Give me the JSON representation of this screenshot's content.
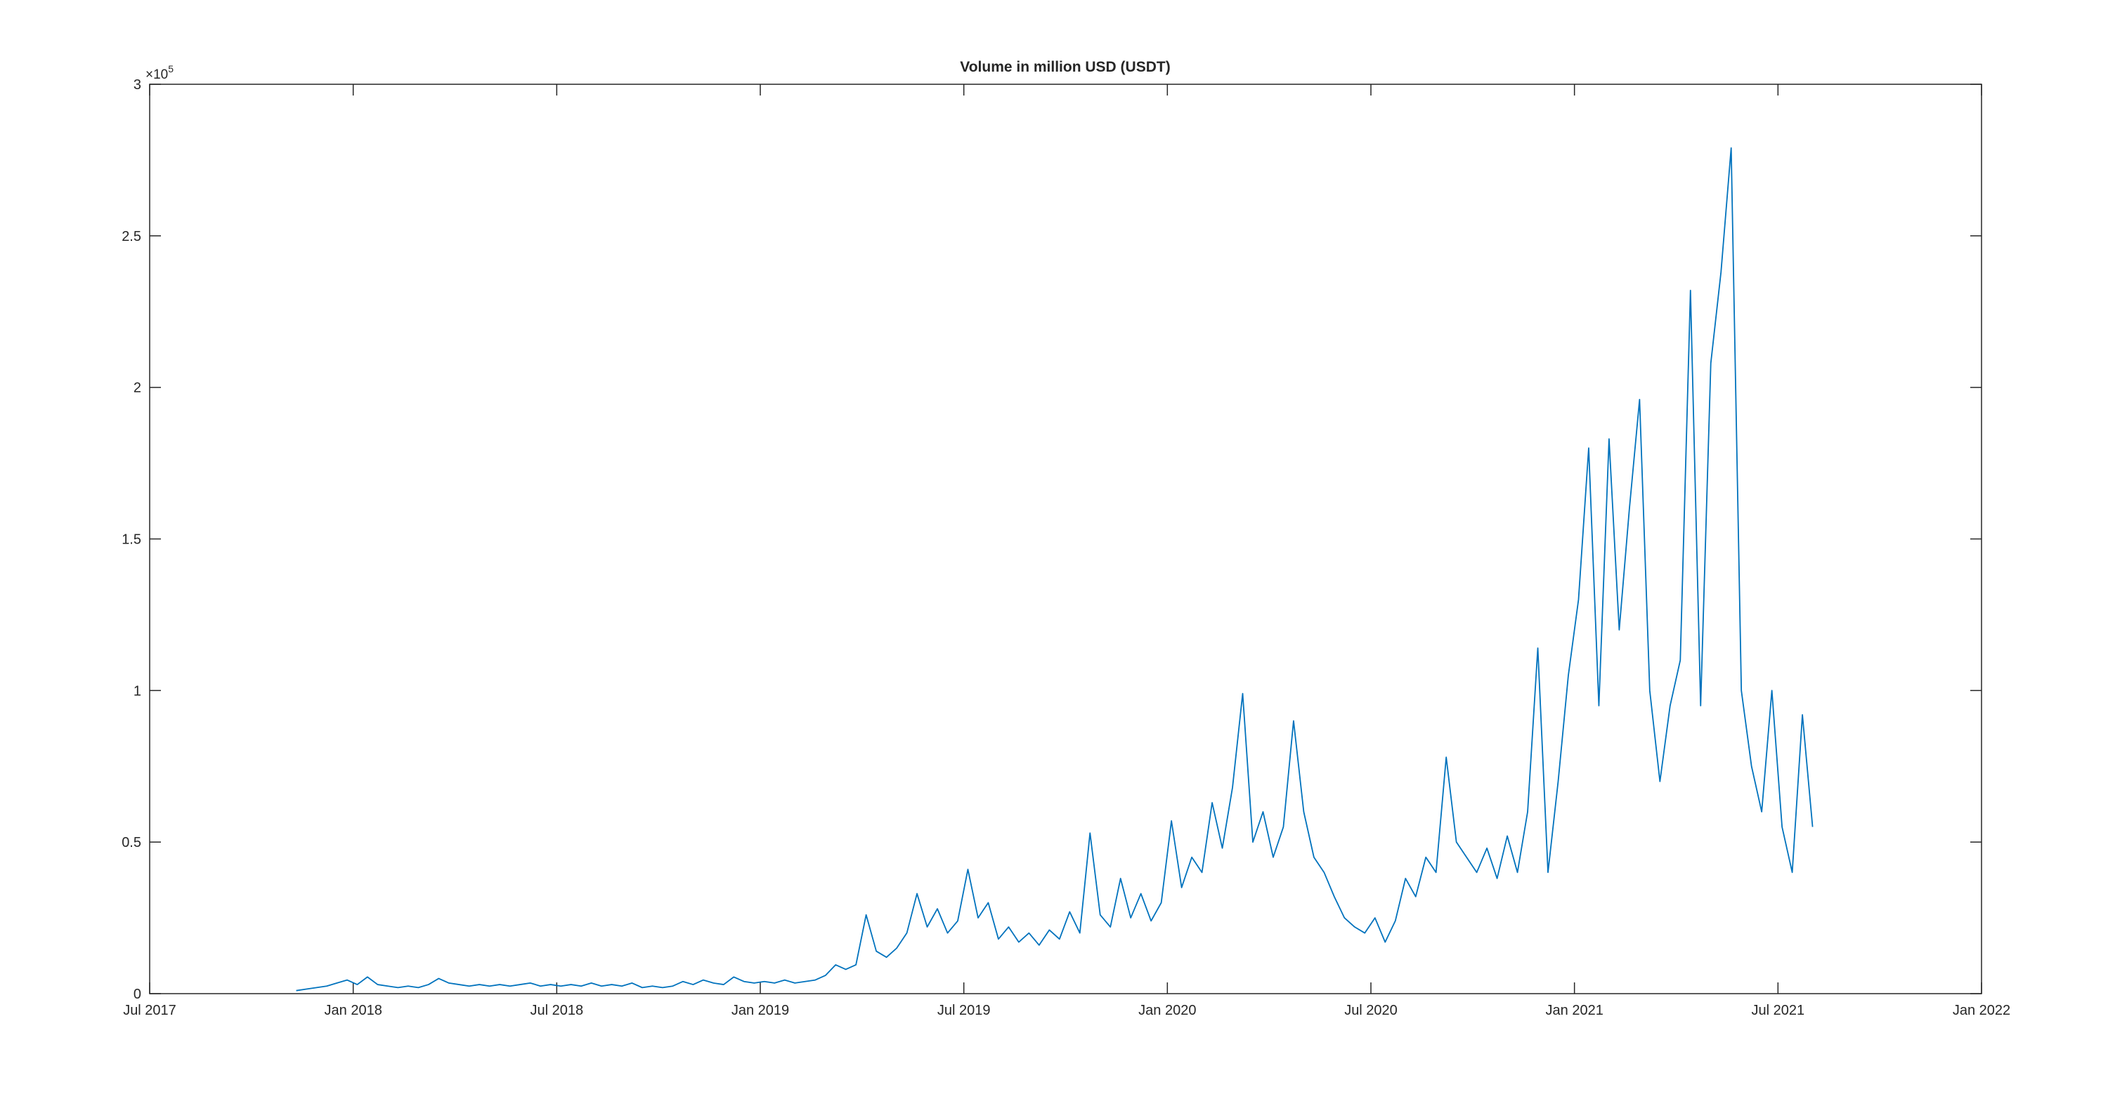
{
  "chart_data": {
    "type": "line",
    "title": "Volume in million USD (USDT)",
    "y_multiplier": {
      "base": "×10",
      "exponent": "5"
    },
    "color": "#0072bd",
    "grid": false,
    "xlim": [
      2017.5,
      2022.0
    ],
    "xticks": [
      {
        "value": 2017.5,
        "label": "Jul 2017"
      },
      {
        "value": 2018.0,
        "label": "Jan 2018"
      },
      {
        "value": 2018.5,
        "label": "Jul 2018"
      },
      {
        "value": 2019.0,
        "label": "Jan 2019"
      },
      {
        "value": 2019.5,
        "label": "Jul 2019"
      },
      {
        "value": 2020.0,
        "label": "Jan 2020"
      },
      {
        "value": 2020.5,
        "label": "Jul 2020"
      },
      {
        "value": 2021.0,
        "label": "Jan 2021"
      },
      {
        "value": 2021.5,
        "label": "Jul 2021"
      },
      {
        "value": 2022.0,
        "label": "Jan 2022"
      }
    ],
    "ylim": [
      0,
      300000
    ],
    "yticks": [
      0,
      {
        "value": 50000,
        "label": "0.5"
      },
      {
        "value": 100000,
        "label": "1"
      },
      {
        "value": 150000,
        "label": "1.5"
      },
      {
        "value": 200000,
        "label": "2"
      },
      {
        "value": 250000,
        "label": "2.5"
      },
      {
        "value": 300000,
        "label": "3"
      }
    ],
    "x": [
      2017.86,
      2017.885,
      2017.91,
      2017.935,
      2017.96,
      2017.985,
      2018.01,
      2018.035,
      2018.06,
      2018.085,
      2018.11,
      2018.135,
      2018.16,
      2018.185,
      2018.21,
      2018.235,
      2018.26,
      2018.285,
      2018.31,
      2018.335,
      2018.36,
      2018.385,
      2018.41,
      2018.435,
      2018.46,
      2018.485,
      2018.51,
      2018.535,
      2018.56,
      2018.585,
      2018.61,
      2018.635,
      2018.66,
      2018.685,
      2018.71,
      2018.735,
      2018.76,
      2018.785,
      2018.81,
      2018.835,
      2018.86,
      2018.885,
      2018.91,
      2018.935,
      2018.96,
      2018.985,
      2019.01,
      2019.035,
      2019.06,
      2019.085,
      2019.11,
      2019.135,
      2019.16,
      2019.185,
      2019.21,
      2019.235,
      2019.26,
      2019.285,
      2019.31,
      2019.335,
      2019.36,
      2019.385,
      2019.41,
      2019.435,
      2019.46,
      2019.485,
      2019.51,
      2019.535,
      2019.56,
      2019.585,
      2019.61,
      2019.635,
      2019.66,
      2019.685,
      2019.71,
      2019.735,
      2019.76,
      2019.785,
      2019.81,
      2019.835,
      2019.86,
      2019.885,
      2019.91,
      2019.935,
      2019.96,
      2019.985,
      2020.01,
      2020.035,
      2020.06,
      2020.085,
      2020.11,
      2020.135,
      2020.16,
      2020.185,
      2020.21,
      2020.235,
      2020.26,
      2020.285,
      2020.31,
      2020.335,
      2020.36,
      2020.385,
      2020.41,
      2020.435,
      2020.46,
      2020.485,
      2020.51,
      2020.535,
      2020.56,
      2020.585,
      2020.61,
      2020.635,
      2020.66,
      2020.685,
      2020.71,
      2020.735,
      2020.76,
      2020.785,
      2020.81,
      2020.835,
      2020.86,
      2020.885,
      2020.91,
      2020.935,
      2020.96,
      2020.985,
      2021.01,
      2021.035,
      2021.06,
      2021.085,
      2021.11,
      2021.135,
      2021.16,
      2021.185,
      2021.21,
      2021.235,
      2021.26,
      2021.285,
      2021.31,
      2021.335,
      2021.36,
      2021.385,
      2021.41,
      2021.435,
      2021.46,
      2021.485,
      2021.51,
      2021.535,
      2021.56,
      2021.585
    ],
    "values": [
      1000,
      1500,
      2000,
      2500,
      3500,
      4500,
      3000,
      5500,
      3000,
      2500,
      2000,
      2500,
      2000,
      3000,
      5000,
      3500,
      3000,
      2500,
      3000,
      2500,
      3000,
      2500,
      3000,
      3500,
      2500,
      3000,
      2500,
      3000,
      2500,
      3500,
      2500,
      3000,
      2500,
      3500,
      2000,
      2500,
      2000,
      2500,
      4000,
      3000,
      4500,
      3500,
      3000,
      5500,
      4000,
      3500,
      4000,
      3500,
      4500,
      3500,
      4000,
      4500,
      6000,
      9500,
      8000,
      9500,
      26000,
      14000,
      12000,
      15000,
      20000,
      33000,
      22000,
      28000,
      20000,
      24000,
      41000,
      25000,
      30000,
      18000,
      22000,
      17000,
      20000,
      16000,
      21000,
      18000,
      27000,
      20000,
      53000,
      26000,
      22000,
      38000,
      25000,
      33000,
      24000,
      30000,
      57000,
      35000,
      45000,
      40000,
      63000,
      48000,
      68000,
      99000,
      50000,
      60000,
      45000,
      55000,
      90000,
      60000,
      45000,
      40000,
      32000,
      25000,
      22000,
      20000,
      25000,
      17000,
      24000,
      38000,
      32000,
      45000,
      40000,
      78000,
      50000,
      45000,
      40000,
      48000,
      38000,
      52000,
      40000,
      60000,
      114000,
      40000,
      70000,
      105000,
      130000,
      180000,
      95000,
      183000,
      120000,
      160000,
      196000,
      100000,
      70000,
      95000,
      110000,
      232000,
      95000,
      208000,
      238000,
      279000,
      100000,
      75000,
      60000,
      100000,
      55000,
      40000,
      92000,
      55000
    ]
  }
}
